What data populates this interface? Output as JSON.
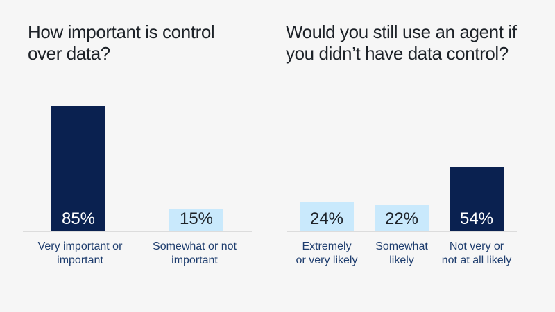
{
  "page": {
    "background": "#f6f6f6"
  },
  "colors": {
    "navy": "#0a2150",
    "light_blue": "#c9e9fc",
    "title_text": "#1d2228",
    "category_text": "#1e3d6e",
    "baseline": "#dcdcdc",
    "value_on_navy": "#ffffff",
    "value_on_light": "#1d2228"
  },
  "chart_data": [
    {
      "type": "bar",
      "title": "How important is control\nover data?",
      "categories": [
        "Very important or\nimportant",
        "Somewhat or not\nimportant"
      ],
      "values": [
        85,
        15
      ],
      "value_labels": [
        "85%",
        "15%"
      ],
      "bar_colors": [
        "#0a2150",
        "#c9e9fc"
      ],
      "value_label_colors": [
        "#ffffff",
        "#1d2228"
      ],
      "xlabel": "",
      "ylabel": "",
      "ylim": [
        0,
        100
      ],
      "grid": false,
      "legend": false,
      "value_label_position": "inside-bottom"
    },
    {
      "type": "bar",
      "title": "Would you still use an agent if\nyou didn’t have data control?",
      "categories": [
        "Extremely\nor very likely",
        "Somewhat\nlikely",
        "Not very or\nnot at all likely"
      ],
      "values": [
        24,
        22,
        54
      ],
      "value_labels": [
        "24%",
        "22%",
        "54%"
      ],
      "bar_colors": [
        "#c9e9fc",
        "#c9e9fc",
        "#0a2150"
      ],
      "value_label_colors": [
        "#1d2228",
        "#1d2228",
        "#ffffff"
      ],
      "xlabel": "",
      "ylabel": "",
      "ylim": [
        0,
        100
      ],
      "grid": false,
      "legend": false,
      "value_label_position": "inside-bottom"
    }
  ]
}
